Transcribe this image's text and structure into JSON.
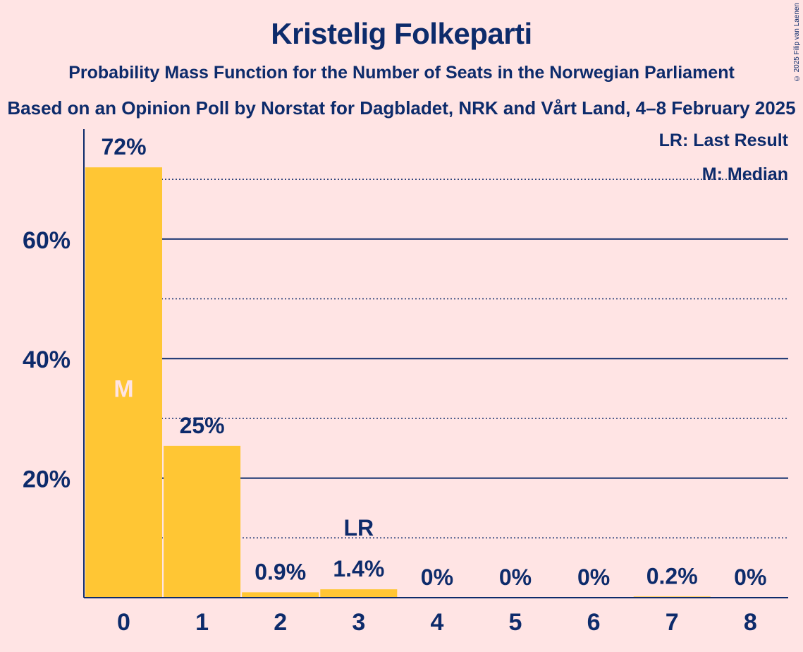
{
  "header": {
    "title": "Kristelig Folkeparti",
    "subtitle": "Probability Mass Function for the Number of Seats in the Norwegian Parliament",
    "source": "Based on an Opinion Poll by Norstat for Dagbladet, NRK and Vårt Land, 4–8 February 2025",
    "copyright": "© 2025 Filip van Laenen"
  },
  "legend": {
    "last_result": "LR: Last Result",
    "median": "M: Median"
  },
  "colors": {
    "background": "#FFE4E4",
    "bar": "#FFC634",
    "text": "#0D2B6B",
    "median_marker": "#FFE4E4"
  },
  "chart_data": {
    "type": "bar",
    "categories": [
      "0",
      "1",
      "2",
      "3",
      "4",
      "5",
      "6",
      "7",
      "8"
    ],
    "values": [
      72,
      25.4,
      0.9,
      1.4,
      0,
      0,
      0,
      0.2,
      0
    ],
    "data_labels": [
      "72%",
      "25%",
      "0.9%",
      "1.4%",
      "0%",
      "0%",
      "0%",
      "0.2%",
      "0%"
    ],
    "y_tick_labels": [
      "20%",
      "40%",
      "60%"
    ],
    "y_ticks": [
      20,
      40,
      60
    ],
    "y_minor_gridlines": [
      10,
      30,
      50,
      70
    ],
    "ylim": [
      0,
      78
    ],
    "median_category": "0",
    "median_marker": "M",
    "last_result_category": "3",
    "last_result_marker": "LR",
    "legend_position": "top-right"
  }
}
